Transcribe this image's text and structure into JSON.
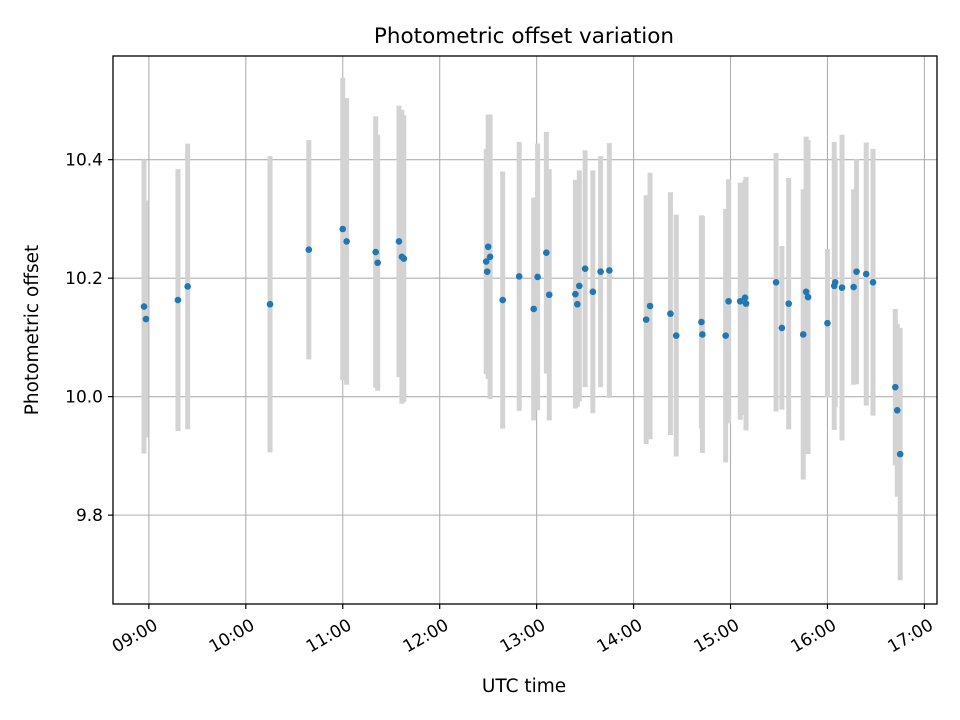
{
  "chart_data": {
    "type": "scatter",
    "title": "Photometric offset variation",
    "xlabel": "UTC time",
    "ylabel": "Photometric offset",
    "xlim": [
      8.63,
      17.13
    ],
    "ylim": [
      9.65,
      10.575
    ],
    "grid": true,
    "x_ticks": [
      {
        "value": 9,
        "label": "09:00"
      },
      {
        "value": 10,
        "label": "10:00"
      },
      {
        "value": 11,
        "label": "11:00"
      },
      {
        "value": 12,
        "label": "12:00"
      },
      {
        "value": 13,
        "label": "13:00"
      },
      {
        "value": 14,
        "label": "14:00"
      },
      {
        "value": 15,
        "label": "15:00"
      },
      {
        "value": 16,
        "label": "16:00"
      },
      {
        "value": 17,
        "label": "17:00"
      }
    ],
    "y_ticks": [
      {
        "value": 9.8,
        "label": "9.8"
      },
      {
        "value": 10.0,
        "label": "10.0"
      },
      {
        "value": 10.2,
        "label": "10.2"
      },
      {
        "value": 10.4,
        "label": "10.4"
      }
    ],
    "colors": {
      "marker": "#1f77b4",
      "errorbar": "#d3d3d3",
      "grid": "#b0b0b0",
      "axes": "#000000"
    },
    "series": [
      {
        "name": "Photometric offset",
        "x": [
          8.95,
          8.97,
          9.3,
          9.4,
          10.25,
          10.65,
          11.0,
          11.04,
          11.34,
          11.36,
          11.58,
          11.61,
          11.63,
          12.48,
          12.49,
          12.5,
          12.52,
          12.65,
          12.82,
          12.97,
          13.01,
          13.1,
          13.13,
          13.4,
          13.42,
          13.44,
          13.5,
          13.58,
          13.66,
          13.75,
          14.13,
          14.17,
          14.38,
          14.44,
          14.7,
          14.71,
          14.95,
          14.98,
          15.1,
          15.15,
          15.16,
          15.47,
          15.53,
          15.6,
          15.75,
          15.78,
          15.8,
          16.0,
          16.07,
          16.08,
          16.15,
          16.27,
          16.3,
          16.4,
          16.47,
          16.7,
          16.72,
          16.75
        ],
        "y": [
          10.152,
          10.131,
          10.163,
          10.186,
          10.156,
          10.248,
          10.283,
          10.262,
          10.244,
          10.226,
          10.262,
          10.236,
          10.233,
          10.228,
          10.211,
          10.253,
          10.236,
          10.163,
          10.203,
          10.148,
          10.202,
          10.243,
          10.172,
          10.173,
          10.156,
          10.187,
          10.216,
          10.177,
          10.211,
          10.213,
          10.13,
          10.153,
          10.14,
          10.103,
          10.126,
          10.105,
          10.103,
          10.161,
          10.161,
          10.167,
          10.157,
          10.193,
          10.116,
          10.157,
          10.105,
          10.177,
          10.168,
          10.124,
          10.187,
          10.193,
          10.184,
          10.185,
          10.211,
          10.207,
          10.193,
          10.016,
          9.977,
          9.903
        ],
        "yerr": [
          0.248,
          0.2,
          0.221,
          0.241,
          0.25,
          0.185,
          0.255,
          0.242,
          0.229,
          0.216,
          0.229,
          0.248,
          0.242,
          0.19,
          0.17,
          0.223,
          0.24,
          0.217,
          0.227,
          0.188,
          0.225,
          0.204,
          0.212,
          0.193,
          0.173,
          0.195,
          0.2,
          0.205,
          0.195,
          0.215,
          0.21,
          0.225,
          0.205,
          0.204,
          0.18,
          0.2,
          0.214,
          0.206,
          0.2,
          0.198,
          0.214,
          0.218,
          0.138,
          0.212,
          0.245,
          0.262,
          0.265,
          0.125,
          0.243,
          0.21,
          0.258,
          0.165,
          0.19,
          0.222,
          0.225,
          0.132,
          0.146,
          0.213
        ]
      }
    ]
  }
}
